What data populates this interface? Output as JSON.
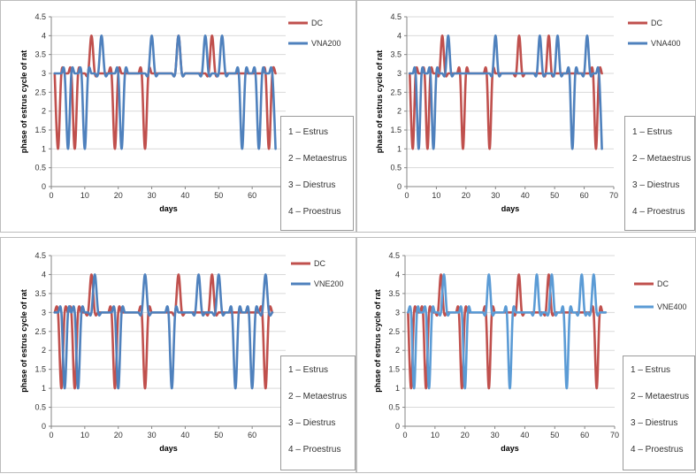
{
  "colors": {
    "red": "#c0504d",
    "blue": "#4f81bd",
    "blue_light": "#5b9bd5",
    "grid": "#d9d9d9",
    "axis": "#868686"
  },
  "phases": [
    "1 – Estrus",
    "2 – Metaestrus",
    "3 – Diestrus",
    "4 – Proestrus"
  ],
  "chart_data": [
    {
      "type": "line",
      "title": "",
      "xlabel": "days",
      "ylabel": "phase of estrus cycle of rat",
      "xlim": [
        0,
        70
      ],
      "ylim": [
        0,
        4.5
      ],
      "x_ticks": [
        0,
        10,
        20,
        30,
        40,
        50,
        60,
        70
      ],
      "y_ticks": [
        0,
        0.5,
        1,
        1.5,
        2,
        2.5,
        3,
        3.5,
        4,
        4.5
      ],
      "x": [
        1,
        2,
        3,
        4,
        5,
        6,
        7,
        8,
        9,
        10,
        11,
        12,
        13,
        14,
        15,
        16,
        17,
        18,
        19,
        20,
        21,
        22,
        23,
        24,
        25,
        26,
        27,
        28,
        29,
        30,
        31,
        32,
        33,
        34,
        35,
        36,
        37,
        38,
        39,
        40,
        41,
        42,
        43,
        44,
        45,
        46,
        47,
        48,
        49,
        50,
        51,
        52,
        53,
        54,
        55,
        56,
        57,
        58,
        59,
        60,
        61,
        62,
        63,
        64,
        65,
        66,
        67
      ],
      "series": [
        {
          "name": "DC",
          "color": "#c0504d",
          "values": [
            3,
            1,
            3,
            3,
            3,
            3,
            1,
            3,
            3,
            3,
            3,
            4,
            3,
            3,
            3,
            3,
            3,
            3,
            1,
            3,
            3,
            3,
            3,
            3,
            3,
            3,
            3,
            1,
            3,
            3,
            3,
            3,
            3,
            3,
            3,
            3,
            3,
            4,
            3,
            3,
            3,
            3,
            3,
            3,
            3,
            3,
            3,
            4,
            3,
            3,
            3,
            3,
            3,
            3,
            3,
            3,
            3,
            3,
            3,
            3,
            3,
            3,
            3,
            3,
            1,
            3,
            3
          ]
        },
        {
          "name": "VNA200",
          "color": "#4f81bd",
          "values": [
            3,
            3,
            3,
            3,
            1,
            3,
            3,
            3,
            3,
            1,
            3,
            3,
            3,
            3,
            4,
            3,
            3,
            3,
            3,
            3,
            1,
            3,
            3,
            3,
            3,
            3,
            3,
            3,
            3,
            4,
            3,
            3,
            3,
            3,
            3,
            3,
            3,
            4,
            3,
            3,
            3,
            3,
            3,
            3,
            3,
            4,
            3,
            3,
            3,
            3,
            4,
            3,
            3,
            3,
            3,
            3,
            1,
            3,
            3,
            3,
            3,
            1,
            3,
            3,
            3,
            3,
            1
          ]
        }
      ]
    },
    {
      "type": "line",
      "title": "",
      "xlabel": "days",
      "ylabel": "phase of estrus cycle of rat",
      "xlim": [
        0,
        70
      ],
      "ylim": [
        0,
        4.5
      ],
      "x_ticks": [
        0,
        10,
        20,
        30,
        40,
        50,
        60,
        70
      ],
      "y_ticks": [
        0,
        0.5,
        1,
        1.5,
        2,
        2.5,
        3,
        3.5,
        4,
        4.5
      ],
      "x": [
        1,
        2,
        3,
        4,
        5,
        6,
        7,
        8,
        9,
        10,
        11,
        12,
        13,
        14,
        15,
        16,
        17,
        18,
        19,
        20,
        21,
        22,
        23,
        24,
        25,
        26,
        27,
        28,
        29,
        30,
        31,
        32,
        33,
        34,
        35,
        36,
        37,
        38,
        39,
        40,
        41,
        42,
        43,
        44,
        45,
        46,
        47,
        48,
        49,
        50,
        51,
        52,
        53,
        54,
        55,
        56,
        57,
        58,
        59,
        60,
        61,
        62,
        63,
        64,
        65,
        66
      ],
      "series": [
        {
          "name": "DC",
          "color": "#c0504d",
          "values": [
            3,
            1,
            3,
            3,
            3,
            3,
            1,
            3,
            3,
            3,
            3,
            4,
            3,
            3,
            3,
            3,
            3,
            3,
            1,
            3,
            3,
            3,
            3,
            3,
            3,
            3,
            3,
            1,
            3,
            3,
            3,
            3,
            3,
            3,
            3,
            3,
            3,
            4,
            3,
            3,
            3,
            3,
            3,
            3,
            3,
            3,
            3,
            4,
            3,
            3,
            3,
            3,
            3,
            3,
            3,
            3,
            3,
            3,
            3,
            3,
            3,
            3,
            3,
            1,
            3,
            3
          ]
        },
        {
          "name": "VNA400",
          "color": "#4f81bd",
          "values": [
            3,
            3,
            3,
            1,
            3,
            3,
            3,
            3,
            1,
            3,
            3,
            3,
            3,
            4,
            3,
            3,
            3,
            3,
            3,
            3,
            3,
            3,
            3,
            3,
            3,
            3,
            3,
            3,
            3,
            4,
            3,
            3,
            3,
            3,
            3,
            3,
            3,
            3,
            3,
            3,
            3,
            3,
            3,
            3,
            4,
            3,
            3,
            3,
            3,
            3,
            4,
            3,
            3,
            3,
            3,
            1,
            3,
            3,
            3,
            3,
            4,
            3,
            3,
            3,
            3,
            1
          ]
        }
      ]
    },
    {
      "type": "line",
      "title": "",
      "xlabel": "days",
      "ylabel": "phase of estrus cycle of rat",
      "xlim": [
        0,
        70
      ],
      "ylim": [
        0,
        4.5
      ],
      "x_ticks": [
        0,
        10,
        20,
        30,
        40,
        50,
        60,
        70
      ],
      "y_ticks": [
        0,
        0.5,
        1,
        1.5,
        2,
        2.5,
        3,
        3.5,
        4,
        4.5
      ],
      "x": [
        1,
        2,
        3,
        4,
        5,
        6,
        7,
        8,
        9,
        10,
        11,
        12,
        13,
        14,
        15,
        16,
        17,
        18,
        19,
        20,
        21,
        22,
        23,
        24,
        25,
        26,
        27,
        28,
        29,
        30,
        31,
        32,
        33,
        34,
        35,
        36,
        37,
        38,
        39,
        40,
        41,
        42,
        43,
        44,
        45,
        46,
        47,
        48,
        49,
        50,
        51,
        52,
        53,
        54,
        55,
        56,
        57,
        58,
        59,
        60,
        61,
        62,
        63,
        64,
        65,
        66
      ],
      "series": [
        {
          "name": "DC",
          "color": "#c0504d",
          "values": [
            3,
            3,
            1,
            3,
            3,
            3,
            1,
            3,
            3,
            3,
            3,
            4,
            3,
            3,
            3,
            3,
            3,
            3,
            1,
            3,
            3,
            3,
            3,
            3,
            3,
            3,
            3,
            1,
            3,
            3,
            3,
            3,
            3,
            3,
            3,
            3,
            3,
            4,
            3,
            3,
            3,
            3,
            3,
            3,
            3,
            3,
            3,
            4,
            3,
            3,
            3,
            3,
            3,
            3,
            3,
            3,
            3,
            3,
            3,
            3,
            3,
            3,
            3,
            1,
            3,
            3
          ]
        },
        {
          "name": "VNE200",
          "color": "#4f81bd",
          "values": [
            3,
            3,
            3,
            1,
            3,
            3,
            3,
            1,
            3,
            3,
            3,
            3,
            4,
            3,
            3,
            3,
            3,
            3,
            3,
            1,
            3,
            3,
            3,
            3,
            3,
            3,
            3,
            4,
            3,
            3,
            3,
            3,
            3,
            3,
            3,
            1,
            3,
            3,
            3,
            3,
            3,
            3,
            3,
            4,
            3,
            3,
            3,
            3,
            3,
            4,
            3,
            3,
            3,
            3,
            1,
            3,
            3,
            3,
            3,
            1,
            3,
            3,
            3,
            4,
            3,
            3
          ]
        }
      ]
    },
    {
      "type": "line",
      "title": "",
      "xlabel": "days",
      "ylabel": "phase of estrus cycle of rat",
      "xlim": [
        0,
        70
      ],
      "ylim": [
        0,
        4.5
      ],
      "x_ticks": [
        0,
        10,
        20,
        30,
        40,
        50,
        60,
        70
      ],
      "y_ticks": [
        0,
        0.5,
        1,
        1.5,
        2,
        2.5,
        3,
        3.5,
        4,
        4.5
      ],
      "x": [
        1,
        2,
        3,
        4,
        5,
        6,
        7,
        8,
        9,
        10,
        11,
        12,
        13,
        14,
        15,
        16,
        17,
        18,
        19,
        20,
        21,
        22,
        23,
        24,
        25,
        26,
        27,
        28,
        29,
        30,
        31,
        32,
        33,
        34,
        35,
        36,
        37,
        38,
        39,
        40,
        41,
        42,
        43,
        44,
        45,
        46,
        47,
        48,
        49,
        50,
        51,
        52,
        53,
        54,
        55,
        56,
        57,
        58,
        59,
        60,
        61,
        62,
        63,
        64,
        65,
        66,
        67
      ],
      "series": [
        {
          "name": "DC",
          "color": "#c0504d",
          "values": [
            3,
            1,
            3,
            3,
            3,
            3,
            1,
            3,
            3,
            3,
            3,
            4,
            3,
            3,
            3,
            3,
            3,
            3,
            1,
            3,
            3,
            3,
            3,
            3,
            3,
            3,
            3,
            1,
            3,
            3,
            3,
            3,
            3,
            3,
            3,
            3,
            3,
            4,
            3,
            3,
            3,
            3,
            3,
            3,
            3,
            3,
            3,
            4,
            3,
            3,
            3,
            3,
            3,
            3,
            3,
            3,
            3,
            3,
            3,
            3,
            3,
            3,
            3,
            1,
            3,
            3,
            3
          ]
        },
        {
          "name": "VNE400",
          "color": "#5b9bd5",
          "values": [
            3,
            3,
            1,
            3,
            3,
            3,
            3,
            1,
            3,
            3,
            3,
            3,
            4,
            3,
            3,
            3,
            3,
            3,
            3,
            1,
            3,
            3,
            3,
            3,
            3,
            3,
            3,
            4,
            3,
            3,
            3,
            3,
            3,
            3,
            1,
            3,
            3,
            3,
            3,
            3,
            3,
            3,
            3,
            4,
            3,
            3,
            3,
            3,
            4,
            3,
            3,
            3,
            3,
            1,
            3,
            3,
            3,
            3,
            4,
            3,
            3,
            3,
            4,
            3,
            3,
            3,
            3
          ]
        }
      ]
    }
  ]
}
